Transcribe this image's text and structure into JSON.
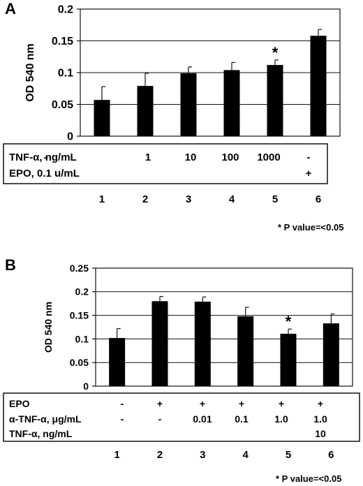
{
  "chart_data": [
    {
      "type": "bar",
      "panel_label": "A",
      "ylabel": "OD 540 nm",
      "ylim": [
        0,
        0.2
      ],
      "yticks": [
        "0",
        "0.05",
        "0.1",
        "0.15",
        "0.2"
      ],
      "grid": true,
      "categories": [
        "1",
        "2",
        "3",
        "4",
        "5",
        "6"
      ],
      "values": [
        0.057,
        0.079,
        0.099,
        0.104,
        0.112,
        0.158
      ],
      "errors": [
        0.021,
        0.02,
        0.01,
        0.012,
        0.008,
        0.01
      ],
      "significance": [
        "",
        "",
        "",
        "",
        "*",
        ""
      ],
      "conditions": [
        {
          "label": "TNF-α, ng/mL",
          "values": [
            "-",
            "1",
            "10",
            "100",
            "1000",
            "-"
          ]
        },
        {
          "label": "EPO, 0.1 u/mL",
          "values": [
            "",
            "",
            "",
            "",
            "",
            "+"
          ]
        }
      ],
      "footnote": "* P value=<0.05"
    },
    {
      "type": "bar",
      "panel_label": "B",
      "ylabel": "OD 540 nm",
      "ylim": [
        0,
        0.25
      ],
      "yticks": [
        "0",
        "0.05",
        "0.1",
        "0.15",
        "0.2",
        "0.25"
      ],
      "grid": true,
      "categories": [
        "1",
        "2",
        "3",
        "4",
        "5",
        "6"
      ],
      "values": [
        0.102,
        0.18,
        0.179,
        0.148,
        0.111,
        0.133
      ],
      "errors": [
        0.02,
        0.01,
        0.01,
        0.019,
        0.01,
        0.02
      ],
      "significance": [
        "",
        "",
        "",
        "",
        "*",
        ""
      ],
      "conditions": [
        {
          "label": "EPO",
          "values": [
            "-",
            "+",
            "+",
            "+",
            "+",
            "+"
          ]
        },
        {
          "label": "α-TNF-α, μg/mL",
          "values": [
            "-",
            "-",
            "0.01",
            "0.1",
            "1.0",
            "1.0"
          ]
        },
        {
          "label": "TNF-α, ng/mL",
          "values": [
            "",
            "",
            "",
            "",
            "",
            "10"
          ]
        }
      ],
      "footnote": "* P value=<0.05"
    }
  ]
}
